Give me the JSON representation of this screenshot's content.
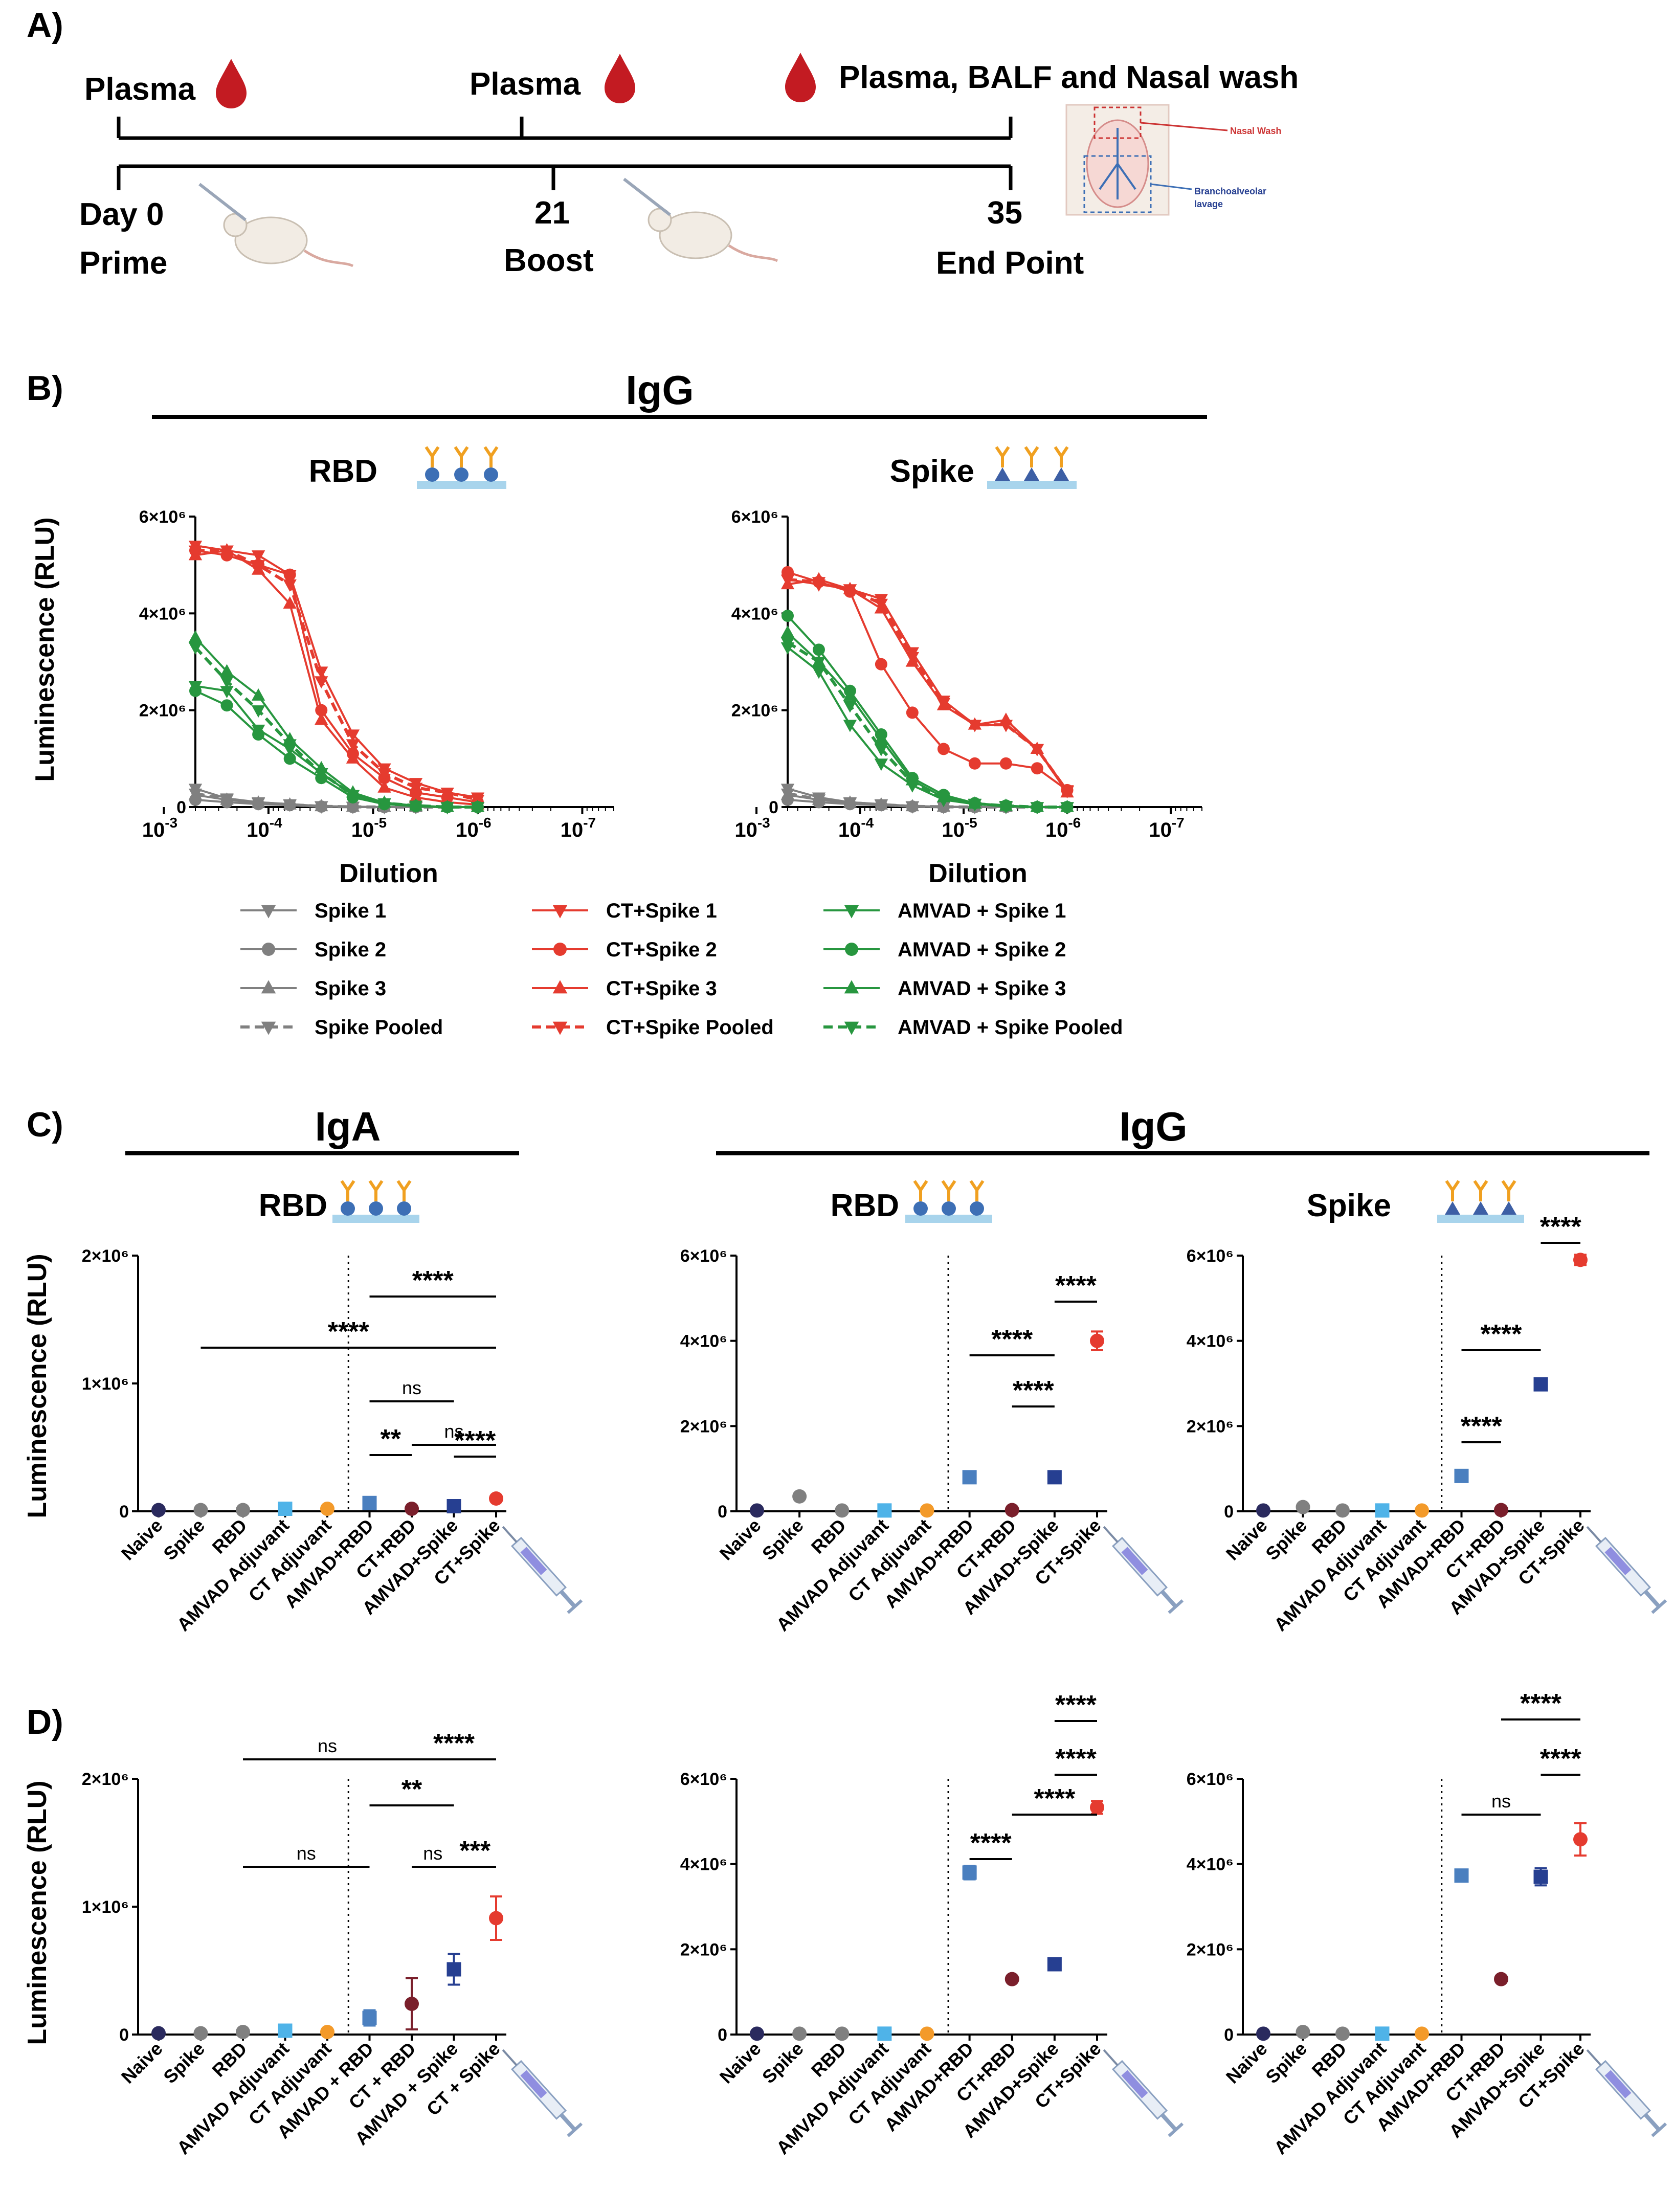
{
  "panels": {
    "a": "A)",
    "b": "B)",
    "c": "C)",
    "d": "D)"
  },
  "timeline": {
    "top_labels": [
      "Plasma",
      "Plasma",
      "Plasma, BALF and Nasal wash"
    ],
    "day_labels": [
      "Day 0",
      "21",
      "35"
    ],
    "phase_labels": [
      "Prime",
      "Boost",
      "End Point"
    ],
    "inset_labels": [
      "Nasal Wash",
      "Branchoalveolar",
      "lavage"
    ]
  },
  "b": {
    "header": "IgG",
    "subs": [
      "RBD",
      "Spike"
    ],
    "ylabel": "Luminescence (RLU)",
    "xlabel": "Dilution",
    "yticks": [
      "0",
      "2×10⁶",
      "4×10⁶",
      "6×10⁶"
    ],
    "xtick_base": "10",
    "xtick_exps": [
      "-3",
      "-4",
      "-5",
      "-6",
      "-7"
    ],
    "legend": [
      "Spike 1",
      "Spike 2",
      "Spike 3",
      "Spike Pooled",
      "CT+Spike 1",
      "CT+Spike 2",
      "CT+Spike 3",
      "CT+Spike Pooled",
      "AMVAD + Spike 1",
      "AMVAD + Spike 2",
      "AMVAD + Spike 3",
      "AMVAD + Spike Pooled"
    ]
  },
  "c": {
    "headers": [
      "IgA",
      "IgG"
    ],
    "subs": [
      "RBD",
      "RBD",
      "Spike"
    ],
    "ylabel": "Luminescence (RLU)",
    "sig": [
      "****",
      "****",
      "ns",
      "**",
      "****",
      "ns",
      "****",
      "****",
      "****",
      "****",
      "****",
      "****"
    ]
  },
  "d": {
    "ylabel": "Luminescence (RLU)",
    "sig": [
      "ns",
      "****",
      "**",
      "ns",
      "ns",
      "***",
      "****",
      "****",
      "****",
      "****",
      "ns",
      "****",
      "****"
    ]
  },
  "colors": {
    "grey": "#808080",
    "red": "#e53b2f",
    "green": "#27963f",
    "blood": "#c31b22",
    "naive": "#2a2a5e",
    "lightblue": "#4fb3e8",
    "orange": "#f39a2a",
    "steel": "#4a7fbf",
    "maroon": "#7a1f2b",
    "navy": "#263f91"
  },
  "chart_data": [
    {
      "id": "B-RBD",
      "type": "line",
      "title": "RBD",
      "xlabel": "Dilution",
      "ylabel": "Luminescence (RLU)",
      "x_scale": "log",
      "xlim": [
        0.0005,
        5e-08
      ],
      "ylim": [
        0,
        6000000
      ],
      "x": [
        0.0005,
        0.00025,
        0.000125,
        6.25e-05,
        3.125e-05,
        1.56e-05,
        7.8e-06,
        3.9e-06,
        1.95e-06,
        1e-06
      ],
      "series": [
        {
          "name": "Spike 1",
          "values": [
            380000,
            180000,
            100000,
            60000,
            20000,
            10000,
            0,
            0,
            0,
            0
          ]
        },
        {
          "name": "Spike 2",
          "values": [
            150000,
            100000,
            60000,
            40000,
            10000,
            0,
            0,
            0,
            0,
            0
          ]
        },
        {
          "name": "Spike 3",
          "values": [
            250000,
            150000,
            90000,
            50000,
            15000,
            5000,
            0,
            0,
            0,
            0
          ]
        },
        {
          "name": "Spike Pooled",
          "values": [
            280000,
            160000,
            90000,
            50000,
            15000,
            5000,
            0,
            0,
            0,
            0
          ]
        },
        {
          "name": "CT+Spike 1",
          "values": [
            5400000,
            5300000,
            5200000,
            4800000,
            2800000,
            1500000,
            800000,
            500000,
            300000,
            200000
          ]
        },
        {
          "name": "CT+Spike 2",
          "values": [
            5300000,
            5200000,
            5000000,
            4800000,
            2000000,
            1100000,
            600000,
            300000,
            200000,
            100000
          ]
        },
        {
          "name": "CT+Spike 3",
          "values": [
            5200000,
            5300000,
            4900000,
            4200000,
            1800000,
            1000000,
            400000,
            200000,
            100000,
            50000
          ]
        },
        {
          "name": "CT+Spike Pooled",
          "values": [
            5300000,
            5300000,
            5000000,
            4600000,
            2600000,
            1300000,
            700000,
            400000,
            300000,
            150000
          ]
        },
        {
          "name": "AMVAD + Spike 1",
          "values": [
            2500000,
            2400000,
            1600000,
            1200000,
            700000,
            250000,
            80000,
            30000,
            0,
            0
          ]
        },
        {
          "name": "AMVAD + Spike 2",
          "values": [
            2400000,
            2100000,
            1500000,
            1000000,
            600000,
            200000,
            60000,
            20000,
            0,
            0
          ]
        },
        {
          "name": "AMVAD + Spike 3",
          "values": [
            3500000,
            2800000,
            2300000,
            1400000,
            800000,
            300000,
            90000,
            30000,
            0,
            0
          ]
        },
        {
          "name": "AMVAD + Spike Pooled",
          "values": [
            3300000,
            2600000,
            2000000,
            1300000,
            700000,
            250000,
            80000,
            30000,
            0,
            0
          ]
        }
      ]
    },
    {
      "id": "B-Spike",
      "type": "line",
      "title": "Spike",
      "xlabel": "Dilution",
      "ylabel": "Luminescence (RLU)",
      "x_scale": "log",
      "xlim": [
        0.0005,
        5e-08
      ],
      "ylim": [
        0,
        6000000
      ],
      "x": [
        0.0005,
        0.00025,
        0.000125,
        6.25e-05,
        3.125e-05,
        1.56e-05,
        7.8e-06,
        3.9e-06,
        1.95e-06,
        1e-06
      ],
      "series": [
        {
          "name": "Spike 1",
          "values": [
            380000,
            200000,
            100000,
            60000,
            20000,
            10000,
            0,
            0,
            0,
            0
          ]
        },
        {
          "name": "Spike 2",
          "values": [
            150000,
            100000,
            60000,
            40000,
            10000,
            0,
            0,
            0,
            0,
            0
          ]
        },
        {
          "name": "Spike 3",
          "values": [
            250000,
            150000,
            90000,
            50000,
            15000,
            5000,
            0,
            0,
            0,
            0
          ]
        },
        {
          "name": "Spike Pooled",
          "values": [
            280000,
            160000,
            90000,
            50000,
            15000,
            5000,
            0,
            0,
            0,
            0
          ]
        },
        {
          "name": "CT+Spike 1",
          "values": [
            4700000,
            4600000,
            4500000,
            4300000,
            3200000,
            2200000,
            1700000,
            1700000,
            1200000,
            350000
          ]
        },
        {
          "name": "CT+Spike 2",
          "values": [
            4850000,
            4650000,
            4450000,
            2950000,
            1950000,
            1200000,
            900000,
            900000,
            800000,
            350000
          ]
        },
        {
          "name": "CT+Spike 3",
          "values": [
            4600000,
            4700000,
            4500000,
            4100000,
            3000000,
            2100000,
            1700000,
            1800000,
            1200000,
            300000
          ]
        },
        {
          "name": "CT+Spike Pooled",
          "values": [
            4700000,
            4650000,
            4500000,
            4200000,
            3100000,
            2150000,
            1700000,
            1700000,
            1200000,
            330000
          ]
        },
        {
          "name": "AMVAD + Spike 1",
          "values": [
            3300000,
            2800000,
            1700000,
            900000,
            450000,
            150000,
            60000,
            20000,
            0,
            0
          ]
        },
        {
          "name": "AMVAD + Spike 2",
          "values": [
            3950000,
            3250000,
            2400000,
            1500000,
            600000,
            250000,
            80000,
            30000,
            0,
            0
          ]
        },
        {
          "name": "AMVAD + Spike 3",
          "values": [
            3600000,
            3000000,
            2300000,
            1400000,
            550000,
            200000,
            70000,
            25000,
            0,
            0
          ]
        },
        {
          "name": "AMVAD + Spike Pooled",
          "values": [
            3400000,
            3000000,
            2100000,
            1200000,
            500000,
            200000,
            70000,
            25000,
            0,
            0
          ]
        }
      ]
    },
    {
      "id": "C-IgA-RBD",
      "type": "scatter",
      "title": "RBD",
      "ylabel": "Luminescence (RLU)",
      "ylim": [
        0,
        2000000
      ],
      "yticks": [
        "0",
        "1×10⁶",
        "2×10⁶"
      ],
      "categories": [
        "Naive",
        "Spike",
        "RBD",
        "AMVAD Adjuvant",
        "CT Adjuvant",
        "AMVAD+RBD",
        "CT+RBD",
        "AMVAD+Spike",
        "CT+Spike"
      ],
      "values": [
        10000,
        10000,
        10000,
        20000,
        20000,
        65000,
        20000,
        40000,
        100000
      ],
      "errors": [
        0,
        0,
        0,
        0,
        0,
        0,
        0,
        0,
        0
      ]
    },
    {
      "id": "C-IgG-RBD",
      "type": "scatter",
      "title": "RBD",
      "ylim": [
        0,
        6000000
      ],
      "yticks": [
        "0",
        "2×10⁶",
        "4×10⁶",
        "6×10⁶"
      ],
      "categories": [
        "Naive",
        "Spike",
        "RBD",
        "AMVAD Adjuvant",
        "CT Adjuvant",
        "AMVAD+RBD",
        "CT+RBD",
        "AMVAD+Spike",
        "CT+Spike"
      ],
      "values": [
        20000,
        350000,
        20000,
        20000,
        20000,
        800000,
        30000,
        800000,
        4000000
      ],
      "errors": [
        0,
        0,
        0,
        0,
        0,
        0,
        0,
        0,
        220000
      ]
    },
    {
      "id": "C-IgG-Spike",
      "type": "scatter",
      "title": "Spike",
      "ylim": [
        0,
        6000000
      ],
      "yticks": [
        "0",
        "2×10⁶",
        "4×10⁶",
        "6×10⁶"
      ],
      "categories": [
        "Naive",
        "Spike",
        "RBD",
        "AMVAD Adjuvant",
        "CT Adjuvant",
        "AMVAD+RBD",
        "CT+RBD",
        "AMVAD+Spike",
        "CT+Spike"
      ],
      "values": [
        20000,
        100000,
        20000,
        20000,
        20000,
        830000,
        30000,
        2980000,
        5900000
      ],
      "errors": [
        0,
        0,
        0,
        0,
        0,
        0,
        0,
        130000,
        120000
      ]
    },
    {
      "id": "D-1",
      "type": "scatter",
      "ylabel": "Luminescence (RLU)",
      "ylim": [
        0,
        2000000
      ],
      "yticks": [
        "0",
        "1×10⁶",
        "2×10⁶"
      ],
      "categories": [
        "Naive",
        "Spike",
        "RBD",
        "AMVAD Adjuvant",
        "CT Adjuvant",
        "AMVAD + RBD",
        "CT + RBD",
        "AMVAD + Spike",
        "CT + Spike"
      ],
      "values": [
        10000,
        10000,
        20000,
        30000,
        20000,
        130000,
        240000,
        510000,
        910000
      ],
      "errors": [
        0,
        0,
        0,
        0,
        0,
        60000,
        200000,
        120000,
        170000
      ]
    },
    {
      "id": "D-2",
      "type": "scatter",
      "ylim": [
        0,
        6000000
      ],
      "yticks": [
        "0",
        "2×10⁶",
        "4×10⁶",
        "6×10⁶"
      ],
      "categories": [
        "Naive",
        "Spike",
        "RBD",
        "AMVAD Adjuvant",
        "CT Adjuvant",
        "AMVAD+RBD",
        "CT+RBD",
        "AMVAD+Spike",
        "CT+Spike"
      ],
      "values": [
        20000,
        20000,
        20000,
        20000,
        20000,
        3800000,
        1300000,
        1650000,
        5330000
      ],
      "errors": [
        0,
        0,
        0,
        0,
        0,
        160000,
        0,
        0,
        150000
      ]
    },
    {
      "id": "D-3",
      "type": "scatter",
      "ylim": [
        0,
        6000000
      ],
      "yticks": [
        "0",
        "2×10⁶",
        "4×10⁶",
        "6×10⁶"
      ],
      "categories": [
        "Naive",
        "Spike",
        "RBD",
        "AMVAD Adjuvant",
        "CT Adjuvant",
        "AMVAD+RBD",
        "CT+RBD",
        "AMVAD+Spike",
        "CT+Spike"
      ],
      "values": [
        20000,
        60000,
        20000,
        20000,
        20000,
        3730000,
        1300000,
        3700000,
        4580000
      ],
      "errors": [
        0,
        0,
        0,
        0,
        0,
        0,
        0,
        200000,
        380000
      ]
    }
  ]
}
